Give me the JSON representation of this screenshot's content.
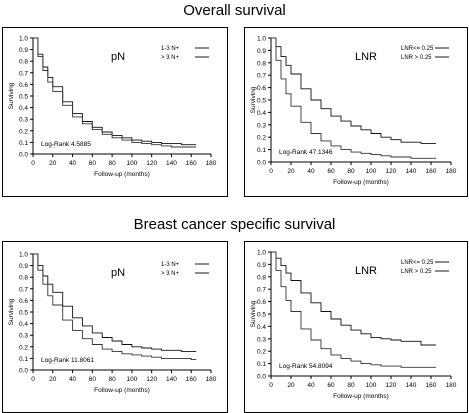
{
  "titles": {
    "top": "Overall survival",
    "bottom": "Breast cancer specific survival"
  },
  "common": {
    "ylabel": "Surviving",
    "xlabel": "Follow-up (months)",
    "yticks": [
      "0.0",
      "0.1",
      "0.2",
      "0.3",
      "0.4",
      "0.5",
      "0.6",
      "0.7",
      "0.8",
      "0.9",
      "1.0"
    ],
    "xticks": [
      "0",
      "20",
      "40",
      "60",
      "80",
      "100",
      "120",
      "140",
      "160",
      "180"
    ]
  },
  "chart_data": [
    {
      "type": "line",
      "panel_label": "pN",
      "xlabel": "Follow-up (months)",
      "ylabel": "Surviving",
      "xlim": [
        0,
        180
      ],
      "ylim": [
        0,
        1
      ],
      "legend_position": "top-right",
      "stat": "Log-Rank 4.5885",
      "series": [
        {
          "name": "1-3 N+",
          "x": [
            0,
            5,
            10,
            15,
            20,
            30,
            40,
            50,
            60,
            70,
            80,
            90,
            100,
            110,
            120,
            130,
            140,
            150,
            160,
            165
          ],
          "values": [
            1.0,
            0.86,
            0.75,
            0.66,
            0.58,
            0.45,
            0.35,
            0.28,
            0.23,
            0.19,
            0.16,
            0.14,
            0.12,
            0.11,
            0.1,
            0.09,
            0.09,
            0.08,
            0.08,
            0.08
          ]
        },
        {
          "name": "> 3 N+",
          "x": [
            0,
            5,
            10,
            15,
            20,
            30,
            40,
            50,
            60,
            70,
            80,
            90,
            100,
            110,
            120,
            130,
            140,
            150,
            160,
            165
          ],
          "values": [
            1.0,
            0.84,
            0.72,
            0.62,
            0.54,
            0.42,
            0.32,
            0.26,
            0.21,
            0.17,
            0.14,
            0.12,
            0.1,
            0.09,
            0.08,
            0.07,
            0.06,
            0.06,
            0.06,
            0.06
          ]
        }
      ]
    },
    {
      "type": "line",
      "panel_label": "LNR",
      "xlabel": "Follow-up (months)",
      "ylabel": "Surviving",
      "xlim": [
        0,
        180
      ],
      "ylim": [
        0,
        1
      ],
      "legend_position": "top-right",
      "stat": "Log-Rank 47.1346",
      "series": [
        {
          "name": "LNR<= 0.25",
          "x": [
            0,
            5,
            10,
            15,
            20,
            30,
            40,
            50,
            60,
            70,
            80,
            90,
            100,
            110,
            120,
            130,
            140,
            150,
            160,
            165
          ],
          "values": [
            1.0,
            0.93,
            0.85,
            0.78,
            0.71,
            0.59,
            0.5,
            0.43,
            0.37,
            0.33,
            0.29,
            0.26,
            0.23,
            0.2,
            0.18,
            0.16,
            0.16,
            0.15,
            0.15,
            0.15
          ]
        },
        {
          "name": "LNR > 0.25",
          "x": [
            0,
            5,
            10,
            15,
            20,
            30,
            40,
            50,
            60,
            70,
            80,
            90,
            100,
            110,
            120,
            130,
            140,
            150,
            160,
            165
          ],
          "values": [
            1.0,
            0.82,
            0.67,
            0.55,
            0.45,
            0.32,
            0.23,
            0.17,
            0.13,
            0.1,
            0.08,
            0.07,
            0.06,
            0.05,
            0.04,
            0.04,
            0.03,
            0.03,
            0.03,
            0.03
          ]
        }
      ]
    },
    {
      "type": "line",
      "panel_label": "pN",
      "xlabel": "Follow-up (months)",
      "ylabel": "Surviving",
      "xlim": [
        0,
        180
      ],
      "ylim": [
        0,
        1
      ],
      "legend_position": "top-right",
      "stat": "Log-Rank 11.8061",
      "series": [
        {
          "name": "1-3 N+",
          "x": [
            0,
            5,
            10,
            15,
            20,
            30,
            40,
            50,
            60,
            70,
            80,
            90,
            100,
            110,
            120,
            130,
            140,
            150,
            160,
            165
          ],
          "values": [
            1.0,
            0.9,
            0.81,
            0.74,
            0.67,
            0.55,
            0.45,
            0.38,
            0.32,
            0.28,
            0.25,
            0.22,
            0.2,
            0.19,
            0.18,
            0.17,
            0.17,
            0.16,
            0.16,
            0.16
          ]
        },
        {
          "name": "> 3 N+",
          "x": [
            0,
            5,
            10,
            15,
            20,
            30,
            40,
            50,
            60,
            70,
            80,
            90,
            100,
            110,
            120,
            130,
            140,
            150,
            160,
            165
          ],
          "values": [
            1.0,
            0.86,
            0.74,
            0.64,
            0.56,
            0.43,
            0.34,
            0.27,
            0.22,
            0.18,
            0.16,
            0.14,
            0.13,
            0.12,
            0.11,
            0.1,
            0.1,
            0.1,
            0.09,
            0.09
          ]
        }
      ]
    },
    {
      "type": "line",
      "panel_label": "LNR",
      "xlabel": "Follow-up (months)",
      "ylabel": "Surviving",
      "xlim": [
        0,
        180
      ],
      "ylim": [
        0,
        1
      ],
      "legend_position": "top-right",
      "stat": "Log-Rank 54.8094",
      "series": [
        {
          "name": "LNR<= 0.25",
          "x": [
            0,
            5,
            10,
            15,
            20,
            30,
            40,
            50,
            60,
            70,
            80,
            90,
            100,
            110,
            120,
            130,
            140,
            150,
            160,
            165
          ],
          "values": [
            1.0,
            0.95,
            0.89,
            0.83,
            0.77,
            0.67,
            0.59,
            0.52,
            0.46,
            0.41,
            0.37,
            0.34,
            0.31,
            0.3,
            0.29,
            0.28,
            0.28,
            0.25,
            0.25,
            0.25
          ]
        },
        {
          "name": "LNR > 0.25",
          "x": [
            0,
            5,
            10,
            15,
            20,
            30,
            40,
            50,
            60,
            70,
            80,
            90,
            100,
            110,
            120,
            130,
            140,
            150,
            160,
            165
          ],
          "values": [
            1.0,
            0.85,
            0.72,
            0.61,
            0.52,
            0.38,
            0.29,
            0.22,
            0.17,
            0.14,
            0.12,
            0.1,
            0.09,
            0.08,
            0.08,
            0.07,
            0.07,
            0.07,
            0.07,
            0.07
          ]
        }
      ]
    }
  ]
}
